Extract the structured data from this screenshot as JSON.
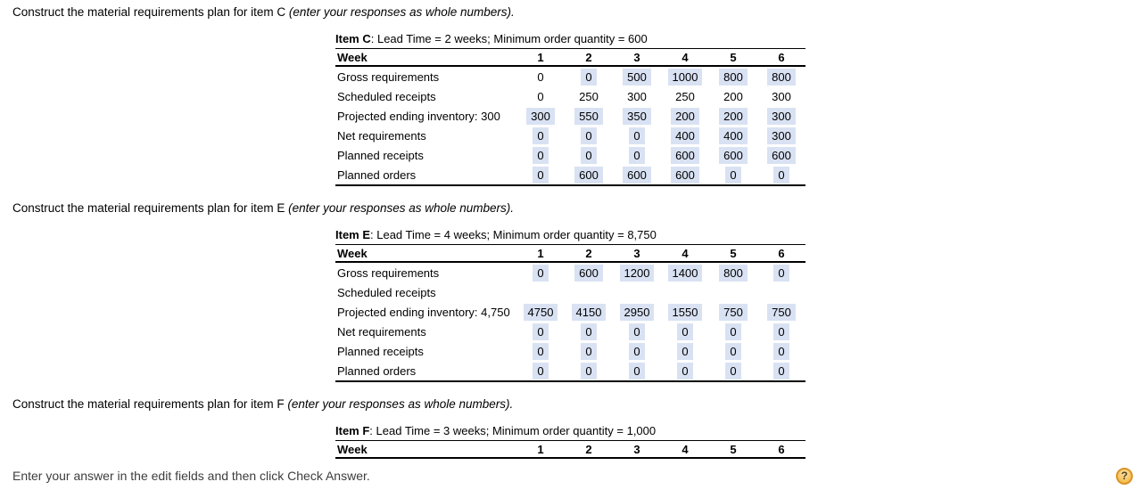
{
  "colors": {
    "highlight": "#D9E2F3",
    "help_fill": "#F7BE4F",
    "help_border": "#D9952A",
    "help_glyph": "#4D3F1E",
    "footer_text": "#3D3D3D"
  },
  "page": {
    "footer": "Enter your answer in the edit fields and then click Check Answer.",
    "help_glyph": "?"
  },
  "sections": [
    {
      "instruction_main": "Construct the material requirements plan for item C ",
      "instruction_italic": "(enter your responses as whole numbers).",
      "table": {
        "title_bold": "Item C",
        "title_rest": ": Lead Time = 2 weeks; Minimum order quantity = 600",
        "week_label": "Week",
        "weeks": [
          "1",
          "2",
          "3",
          "4",
          "5",
          "6"
        ],
        "rows": [
          {
            "label": "Gross requirements",
            "cells": [
              {
                "v": "0",
                "input": false
              },
              {
                "v": "0",
                "input": true
              },
              {
                "v": "500",
                "input": true
              },
              {
                "v": "1000",
                "input": true
              },
              {
                "v": "800",
                "input": true
              },
              {
                "v": "800",
                "input": true
              }
            ]
          },
          {
            "label": "Scheduled receipts",
            "cells": [
              {
                "v": "0",
                "input": false
              },
              {
                "v": "250",
                "input": false
              },
              {
                "v": "300",
                "input": false
              },
              {
                "v": "250",
                "input": false
              },
              {
                "v": "200",
                "input": false
              },
              {
                "v": "300",
                "input": false
              }
            ]
          },
          {
            "label": "Projected ending inventory: 300",
            "cells": [
              {
                "v": "300",
                "input": true
              },
              {
                "v": "550",
                "input": true
              },
              {
                "v": "350",
                "input": true
              },
              {
                "v": "200",
                "input": true
              },
              {
                "v": "200",
                "input": true
              },
              {
                "v": "300",
                "input": true
              }
            ]
          },
          {
            "label": "Net requirements",
            "cells": [
              {
                "v": "0",
                "input": true
              },
              {
                "v": "0",
                "input": true
              },
              {
                "v": "0",
                "input": true
              },
              {
                "v": "400",
                "input": true
              },
              {
                "v": "400",
                "input": true
              },
              {
                "v": "300",
                "input": true
              }
            ]
          },
          {
            "label": "Planned receipts",
            "cells": [
              {
                "v": "0",
                "input": true
              },
              {
                "v": "0",
                "input": true
              },
              {
                "v": "0",
                "input": true
              },
              {
                "v": "600",
                "input": true
              },
              {
                "v": "600",
                "input": true
              },
              {
                "v": "600",
                "input": true
              }
            ]
          },
          {
            "label": "Planned orders",
            "cells": [
              {
                "v": "0",
                "input": true
              },
              {
                "v": "600",
                "input": true
              },
              {
                "v": "600",
                "input": true
              },
              {
                "v": "600",
                "input": true
              },
              {
                "v": "0",
                "input": true
              },
              {
                "v": "0",
                "input": true
              }
            ]
          }
        ]
      }
    },
    {
      "instruction_main": "Construct the material requirements plan for item E ",
      "instruction_italic": "(enter your responses as whole numbers).",
      "table": {
        "title_bold": "Item E",
        "title_rest": ": Lead Time = 4 weeks; Minimum order quantity = 8,750",
        "week_label": "Week",
        "weeks": [
          "1",
          "2",
          "3",
          "4",
          "5",
          "6"
        ],
        "rows": [
          {
            "label": "Gross requirements",
            "cells": [
              {
                "v": "0",
                "input": true
              },
              {
                "v": "600",
                "input": true
              },
              {
                "v": "1200",
                "input": true
              },
              {
                "v": "1400",
                "input": true
              },
              {
                "v": "800",
                "input": true
              },
              {
                "v": "0",
                "input": true
              }
            ]
          },
          {
            "label": "Scheduled receipts",
            "cells": []
          },
          {
            "label": "Projected ending inventory: 4,750",
            "cells": [
              {
                "v": "4750",
                "input": true
              },
              {
                "v": "4150",
                "input": true
              },
              {
                "v": "2950",
                "input": true
              },
              {
                "v": "1550",
                "input": true
              },
              {
                "v": "750",
                "input": true
              },
              {
                "v": "750",
                "input": true
              }
            ]
          },
          {
            "label": "Net requirements",
            "cells": [
              {
                "v": "0",
                "input": true
              },
              {
                "v": "0",
                "input": true
              },
              {
                "v": "0",
                "input": true
              },
              {
                "v": "0",
                "input": true
              },
              {
                "v": "0",
                "input": true
              },
              {
                "v": "0",
                "input": true
              }
            ]
          },
          {
            "label": "Planned receipts",
            "cells": [
              {
                "v": "0",
                "input": true
              },
              {
                "v": "0",
                "input": true
              },
              {
                "v": "0",
                "input": true
              },
              {
                "v": "0",
                "input": true
              },
              {
                "v": "0",
                "input": true
              },
              {
                "v": "0",
                "input": true
              }
            ]
          },
          {
            "label": "Planned orders",
            "cells": [
              {
                "v": "0",
                "input": true
              },
              {
                "v": "0",
                "input": true
              },
              {
                "v": "0",
                "input": true
              },
              {
                "v": "0",
                "input": true
              },
              {
                "v": "0",
                "input": true
              },
              {
                "v": "0",
                "input": true
              }
            ]
          }
        ]
      }
    },
    {
      "instruction_main": "Construct the material requirements plan for item F ",
      "instruction_italic": "(enter your responses as whole numbers).",
      "table": {
        "title_bold": "Item F",
        "title_rest": ": Lead Time = 3 weeks; Minimum order quantity = 1,000",
        "week_label": "Week",
        "weeks": [
          "1",
          "2",
          "3",
          "4",
          "5",
          "6"
        ],
        "rows": []
      }
    }
  ]
}
